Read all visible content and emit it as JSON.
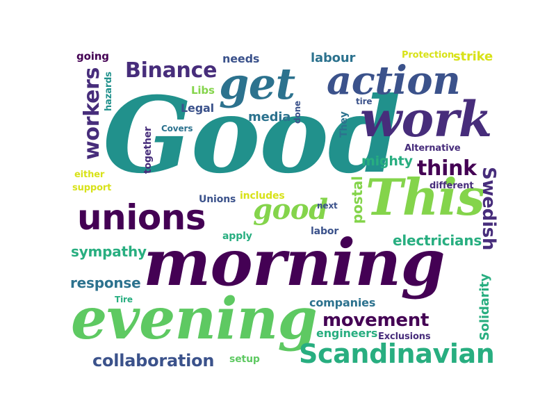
{
  "words": {
    "good_big": "Good",
    "morning": "morning",
    "evening": "evening",
    "work": "work",
    "get": "get",
    "action": "action",
    "this": "This",
    "unions": "unions",
    "scandinavian": "Scandinavian",
    "binance": "Binance",
    "workers": "workers",
    "good_small": "good",
    "think": "think",
    "movement": "movement",
    "collaboration": "collaboration",
    "swedish": "Swedish",
    "electricians": "electricians",
    "sympathy": "sympathy",
    "response": "response",
    "mighty": "mighty",
    "postal": "postal",
    "labour": "labour",
    "media": "media",
    "companies": "companies",
    "engineers": "engineers",
    "solidarity": "Solidarity",
    "needs": "needs",
    "legal": "Legal",
    "together": "together",
    "going": "going",
    "hazards": "hazards",
    "libs": "Libs",
    "covers": "Covers",
    "either": "either",
    "support": "support",
    "unions_small": "Unions",
    "includes": "includes",
    "next": "next",
    "labor": "labor",
    "apply": "apply",
    "tire_small": "Tire",
    "setup": "setup",
    "exclusions": "Exclusions",
    "alternative": "Alternative",
    "different": "different",
    "protection": "Protection",
    "strike": "strike",
    "they": "They",
    "done": "done",
    "tire_lower": "tire"
  },
  "colors": {
    "dark_purple": "#440154",
    "purple": "#472d7b",
    "indigo": "#3b528b",
    "blue": "#2c728e",
    "teal": "#21918c",
    "green_teal": "#28ae80",
    "green": "#5ec962",
    "light_green": "#84d44b",
    "yellow_green": "#addc30",
    "yellow": "#d8e219"
  }
}
